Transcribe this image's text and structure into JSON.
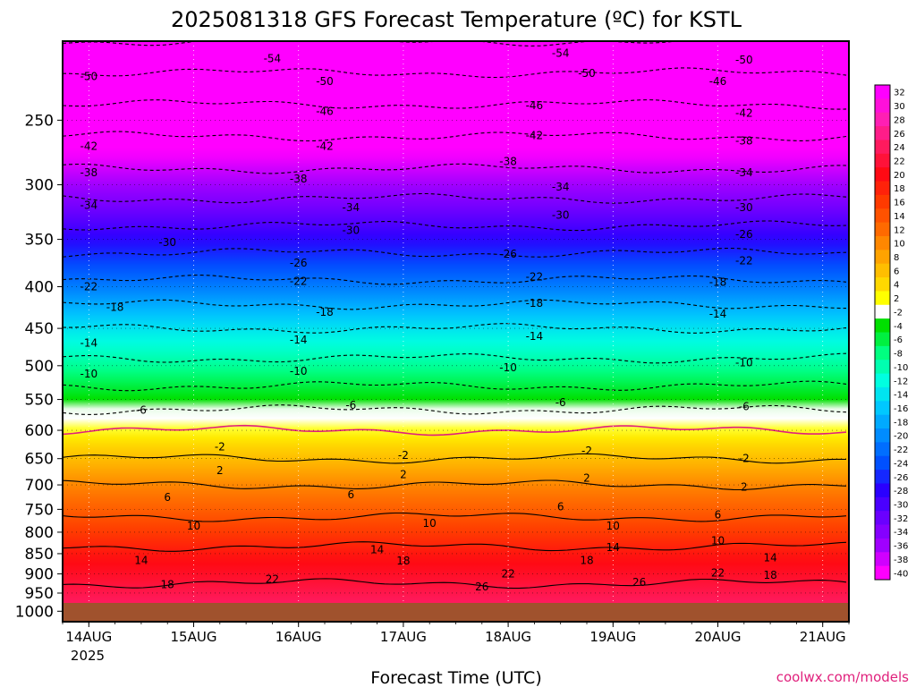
{
  "chart_data": {
    "type": "heatmap",
    "title": "2025081318 GFS Forecast Temperature (ºC) for KSTL",
    "xlabel": "Forecast Time (UTC)",
    "ylabel": "",
    "credit": "coolwx.com/models",
    "x_ticks": [
      "14AUG",
      "15AUG",
      "16AUG",
      "17AUG",
      "18AUG",
      "19AUG",
      "20AUG",
      "21AUG"
    ],
    "x_tick_subtitle": "2025",
    "x_range": [
      "2025-08-13T18Z",
      "2025-08-21T06Z"
    ],
    "y_ticks": [
      250,
      300,
      350,
      400,
      450,
      500,
      550,
      600,
      650,
      700,
      750,
      800,
      850,
      900,
      950,
      1000
    ],
    "y_range": [
      200,
      1030
    ],
    "y_scale": "log",
    "y_reversed": true,
    "colorbar_labels": [
      "32",
      "30",
      "28",
      "26",
      "24",
      "22",
      "20",
      "18",
      "16",
      "14",
      "12",
      "10",
      "8",
      "6",
      "4",
      "2",
      "-2",
      "-4",
      "-6",
      "-8",
      "-10",
      "-12",
      "-14",
      "-16",
      "-18",
      "-20",
      "-22",
      "-24",
      "-26",
      "-28",
      "-30",
      "-32",
      "-34",
      "-36",
      "-38",
      "-40"
    ],
    "ground_color": "#a0522d",
    "zero_line_color": "#e0207c",
    "contour_levels": [
      -54,
      -50,
      -46,
      -42,
      -38,
      -34,
      -30,
      -26,
      -22,
      -18,
      -14,
      -10,
      -6,
      -2,
      2,
      6,
      10,
      14,
      18,
      22,
      26
    ],
    "profiles": [
      {
        "time": "14AUG 00Z",
        "pressure": [
          200,
          250,
          300,
          350,
          400,
          450,
          500,
          550,
          600,
          650,
          700,
          750,
          800,
          850,
          900,
          950,
          1000
        ],
        "temperature": [
          -54,
          -44,
          -36,
          -28,
          -21,
          -14,
          -9,
          -4,
          2,
          6,
          10,
          13,
          16,
          19,
          21,
          23,
          25
        ]
      },
      {
        "time": "17AUG 00Z",
        "pressure": [
          200,
          250,
          300,
          350,
          400,
          450,
          500,
          550,
          600,
          650,
          700,
          750,
          800,
          850,
          900,
          950,
          1000
        ],
        "temperature": [
          -53,
          -43,
          -35,
          -26,
          -19,
          -13,
          -7,
          -2,
          2,
          7,
          11,
          15,
          18,
          22,
          25,
          28,
          30
        ]
      },
      {
        "time": "20AUG 00Z",
        "pressure": [
          200,
          250,
          300,
          350,
          400,
          450,
          500,
          550,
          600,
          650,
          700,
          750,
          800,
          850,
          900,
          950,
          1000
        ],
        "temperature": [
          -51,
          -42,
          -30,
          -21,
          -14,
          -9,
          -5,
          -1,
          3,
          7,
          10,
          13,
          15,
          18,
          20,
          22,
          24
        ]
      }
    ],
    "contour_labels": [
      {
        "text": "-54",
        "x": "2025-08-15T18Z",
        "p": 210
      },
      {
        "text": "-54",
        "x": "2025-08-18T12Z",
        "p": 207
      },
      {
        "text": "-50",
        "x": "2025-08-14T00Z",
        "p": 221
      },
      {
        "text": "-50",
        "x": "2025-08-16T06Z",
        "p": 224
      },
      {
        "text": "-50",
        "x": "2025-08-18T18Z",
        "p": 219
      },
      {
        "text": "-50",
        "x": "2025-08-20T06Z",
        "p": 211
      },
      {
        "text": "-46",
        "x": "2025-08-16T06Z",
        "p": 244
      },
      {
        "text": "-46",
        "x": "2025-08-18T06Z",
        "p": 240
      },
      {
        "text": "-46",
        "x": "2025-08-20T00Z",
        "p": 224
      },
      {
        "text": "-42",
        "x": "2025-08-14T00Z",
        "p": 269
      },
      {
        "text": "-42",
        "x": "2025-08-16T06Z",
        "p": 269
      },
      {
        "text": "-42",
        "x": "2025-08-18T06Z",
        "p": 261
      },
      {
        "text": "-42",
        "x": "2025-08-20T06Z",
        "p": 245
      },
      {
        "text": "-38",
        "x": "2025-08-14T00Z",
        "p": 290
      },
      {
        "text": "-38",
        "x": "2025-08-16T00Z",
        "p": 295
      },
      {
        "text": "-38",
        "x": "2025-08-18T00Z",
        "p": 281
      },
      {
        "text": "-38",
        "x": "2025-08-20T06Z",
        "p": 265
      },
      {
        "text": "-34",
        "x": "2025-08-14T00Z",
        "p": 318
      },
      {
        "text": "-34",
        "x": "2025-08-16T12Z",
        "p": 320
      },
      {
        "text": "-34",
        "x": "2025-08-18T12Z",
        "p": 302
      },
      {
        "text": "-34",
        "x": "2025-08-20T06Z",
        "p": 290
      },
      {
        "text": "-30",
        "x": "2025-08-14T18Z",
        "p": 353
      },
      {
        "text": "-30",
        "x": "2025-08-16T12Z",
        "p": 341
      },
      {
        "text": "-30",
        "x": "2025-08-18T12Z",
        "p": 327
      },
      {
        "text": "-30",
        "x": "2025-08-20T06Z",
        "p": 320
      },
      {
        "text": "-26",
        "x": "2025-08-16T00Z",
        "p": 374
      },
      {
        "text": "-26",
        "x": "2025-08-18T00Z",
        "p": 365
      },
      {
        "text": "-26",
        "x": "2025-08-20T06Z",
        "p": 345
      },
      {
        "text": "-22",
        "x": "2025-08-14T00Z",
        "p": 400
      },
      {
        "text": "-22",
        "x": "2025-08-16T00Z",
        "p": 394
      },
      {
        "text": "-22",
        "x": "2025-08-18T06Z",
        "p": 389
      },
      {
        "text": "-22",
        "x": "2025-08-20T06Z",
        "p": 372
      },
      {
        "text": "-18",
        "x": "2025-08-14T06Z",
        "p": 424
      },
      {
        "text": "-18",
        "x": "2025-08-16T06Z",
        "p": 430
      },
      {
        "text": "-18",
        "x": "2025-08-18T06Z",
        "p": 419
      },
      {
        "text": "-18",
        "x": "2025-08-20T00Z",
        "p": 395
      },
      {
        "text": "-14",
        "x": "2025-08-14T00Z",
        "p": 469
      },
      {
        "text": "-14",
        "x": "2025-08-16T00Z",
        "p": 465
      },
      {
        "text": "-14",
        "x": "2025-08-18T06Z",
        "p": 460
      },
      {
        "text": "-14",
        "x": "2025-08-20T00Z",
        "p": 432
      },
      {
        "text": "-10",
        "x": "2025-08-14T00Z",
        "p": 512
      },
      {
        "text": "-10",
        "x": "2025-08-16T00Z",
        "p": 508
      },
      {
        "text": "-10",
        "x": "2025-08-18T00Z",
        "p": 503
      },
      {
        "text": "-10",
        "x": "2025-08-20T06Z",
        "p": 496
      },
      {
        "text": "-6",
        "x": "2025-08-14T12Z",
        "p": 567
      },
      {
        "text": "-6",
        "x": "2025-08-16T12Z",
        "p": 559
      },
      {
        "text": "-6",
        "x": "2025-08-18T12Z",
        "p": 555
      },
      {
        "text": "-6",
        "x": "2025-08-20T06Z",
        "p": 561
      },
      {
        "text": "-2",
        "x": "2025-08-15T06Z",
        "p": 629
      },
      {
        "text": "-2",
        "x": "2025-08-17T00Z",
        "p": 644
      },
      {
        "text": "-2",
        "x": "2025-08-18T18Z",
        "p": 636
      },
      {
        "text": "-2",
        "x": "2025-08-20T06Z",
        "p": 650
      },
      {
        "text": "2",
        "x": "2025-08-15T06Z",
        "p": 672
      },
      {
        "text": "2",
        "x": "2025-08-17T00Z",
        "p": 680
      },
      {
        "text": "2",
        "x": "2025-08-18T18Z",
        "p": 687
      },
      {
        "text": "2",
        "x": "2025-08-20T06Z",
        "p": 704
      },
      {
        "text": "6",
        "x": "2025-08-14T18Z",
        "p": 725
      },
      {
        "text": "6",
        "x": "2025-08-16T12Z",
        "p": 720
      },
      {
        "text": "6",
        "x": "2025-08-18T12Z",
        "p": 745
      },
      {
        "text": "6",
        "x": "2025-08-20T00Z",
        "p": 762
      },
      {
        "text": "10",
        "x": "2025-08-15T00Z",
        "p": 786
      },
      {
        "text": "10",
        "x": "2025-08-17T06Z",
        "p": 780
      },
      {
        "text": "10",
        "x": "2025-08-19T00Z",
        "p": 786
      },
      {
        "text": "10",
        "x": "2025-08-20T00Z",
        "p": 820
      },
      {
        "text": "14",
        "x": "2025-08-14T12Z",
        "p": 866
      },
      {
        "text": "14",
        "x": "2025-08-16T18Z",
        "p": 840
      },
      {
        "text": "14",
        "x": "2025-08-19T00Z",
        "p": 835
      },
      {
        "text": "14",
        "x": "2025-08-20T12Z",
        "p": 860
      },
      {
        "text": "18",
        "x": "2025-08-14T18Z",
        "p": 927
      },
      {
        "text": "18",
        "x": "2025-08-17T00Z",
        "p": 868
      },
      {
        "text": "18",
        "x": "2025-08-18T18Z",
        "p": 866
      },
      {
        "text": "18",
        "x": "2025-08-20T12Z",
        "p": 903
      },
      {
        "text": "22",
        "x": "2025-08-15T18Z",
        "p": 913
      },
      {
        "text": "22",
        "x": "2025-08-18T00Z",
        "p": 900
      },
      {
        "text": "22",
        "x": "2025-08-20T00Z",
        "p": 897
      },
      {
        "text": "26",
        "x": "2025-08-17T18Z",
        "p": 933
      },
      {
        "text": "26",
        "x": "2025-08-19T06Z",
        "p": 922
      }
    ]
  }
}
